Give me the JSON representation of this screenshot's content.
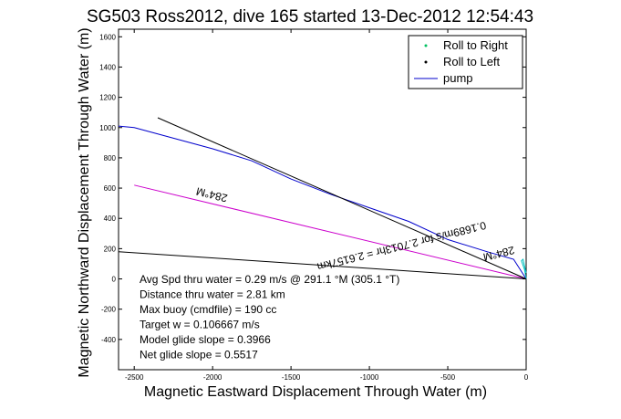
{
  "chart_data": {
    "type": "line",
    "title": "SG503 Ross2012, dive 165 started 13-Dec-2012 12:54:43",
    "xlabel": "Magnetic Eastward Displacement Through Water (m)",
    "ylabel": "Magnetic Northward Displacement Through Water (m)",
    "xlim": [
      -2600,
      0
    ],
    "ylim": [
      -600,
      1650
    ],
    "xticks": [
      -2500,
      -2000,
      -1500,
      -1000,
      -500,
      0
    ],
    "yticks": [
      -400,
      -200,
      0,
      200,
      400,
      600,
      800,
      1000,
      1200,
      1400,
      1600
    ],
    "grid": false,
    "legend_position": "top-right",
    "legend": [
      {
        "label": "Roll to Right",
        "marker": "dot",
        "color": "#00c060"
      },
      {
        "label": "Roll to Left",
        "marker": "dot",
        "color": "#000000"
      },
      {
        "label": "pump",
        "marker": "line",
        "color": "#0000cc"
      }
    ],
    "series": [
      {
        "name": "pump",
        "color": "#0000cc",
        "x": [
          0,
          -80,
          -250,
          -500,
          -750,
          -1000,
          -1250,
          -1500,
          -1750,
          -2000,
          -2250,
          -2500,
          -2600
        ],
        "y": [
          0,
          130,
          180,
          260,
          380,
          470,
          560,
          660,
          780,
          860,
          930,
          1000,
          1010
        ]
      },
      {
        "color": "#cc00cc",
        "x": [
          0,
          -2500
        ],
        "y": [
          0,
          620
        ]
      },
      {
        "color": "#000000",
        "x": [
          0,
          -2350
        ],
        "y": [
          0,
          1065
        ]
      },
      {
        "color": "#000000",
        "x": [
          0,
          -2600
        ],
        "y": [
          0,
          180
        ]
      },
      {
        "color": "#00c0c0",
        "x": [
          0,
          -10,
          -30,
          -20,
          0
        ],
        "y": [
          0,
          60,
          120,
          130,
          40
        ]
      }
    ],
    "rotated_labels": [
      {
        "text": "284°M",
        "x": -2000,
        "y": 580,
        "angle": 194
      },
      {
        "text": "0.1689m/s for 2.7013hr = 2.6157km",
        "x": -800,
        "y": 240,
        "angle": 166
      },
      {
        "text": "284°M",
        "x": -180,
        "y": 190,
        "angle": 166
      }
    ],
    "annotations": [
      "Avg Spd thru water = 0.29 m/s @ 291.1 °M (305.1 °T)",
      "Distance thru water = 2.81 km",
      "Max buoy (cmdfile) = 190 cc",
      "Target w = 0.106667 m/s",
      "Model glide slope = 0.3966",
      "Net glide slope = 0.5517"
    ]
  }
}
